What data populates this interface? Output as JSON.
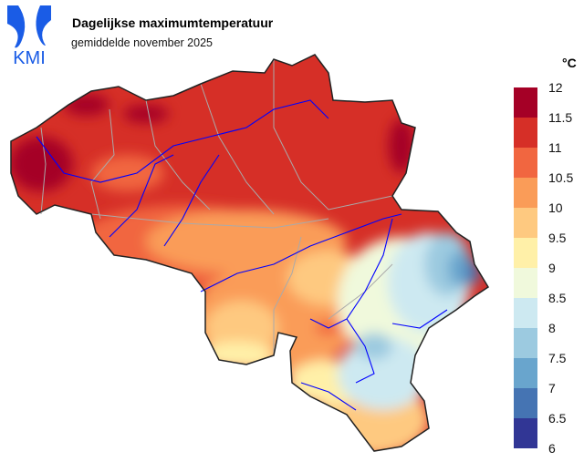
{
  "logo": {
    "text": "KMI",
    "color": "#1a5ce6"
  },
  "header": {
    "title": "Dagelijkse maximumtemperatuur",
    "subtitle": "gemiddelde november 2025"
  },
  "legend": {
    "unit": "°C",
    "ticks": [
      "12",
      "11.5",
      "11",
      "10.5",
      "10",
      "9.5",
      "9",
      "8.5",
      "8",
      "7.5",
      "7",
      "6.5",
      "6"
    ],
    "colors": [
      "#a50026",
      "#d62f27",
      "#f16640",
      "#fa9c58",
      "#fec980",
      "#fff0a8",
      "#f0f9dc",
      "#cde9f1",
      "#9ccae0",
      "#69a5cd",
      "#4574b3",
      "#313695"
    ]
  },
  "map": {
    "river_color": "#0000ff",
    "border_color": "#aaaaaa",
    "outline_color": "#222222"
  }
}
